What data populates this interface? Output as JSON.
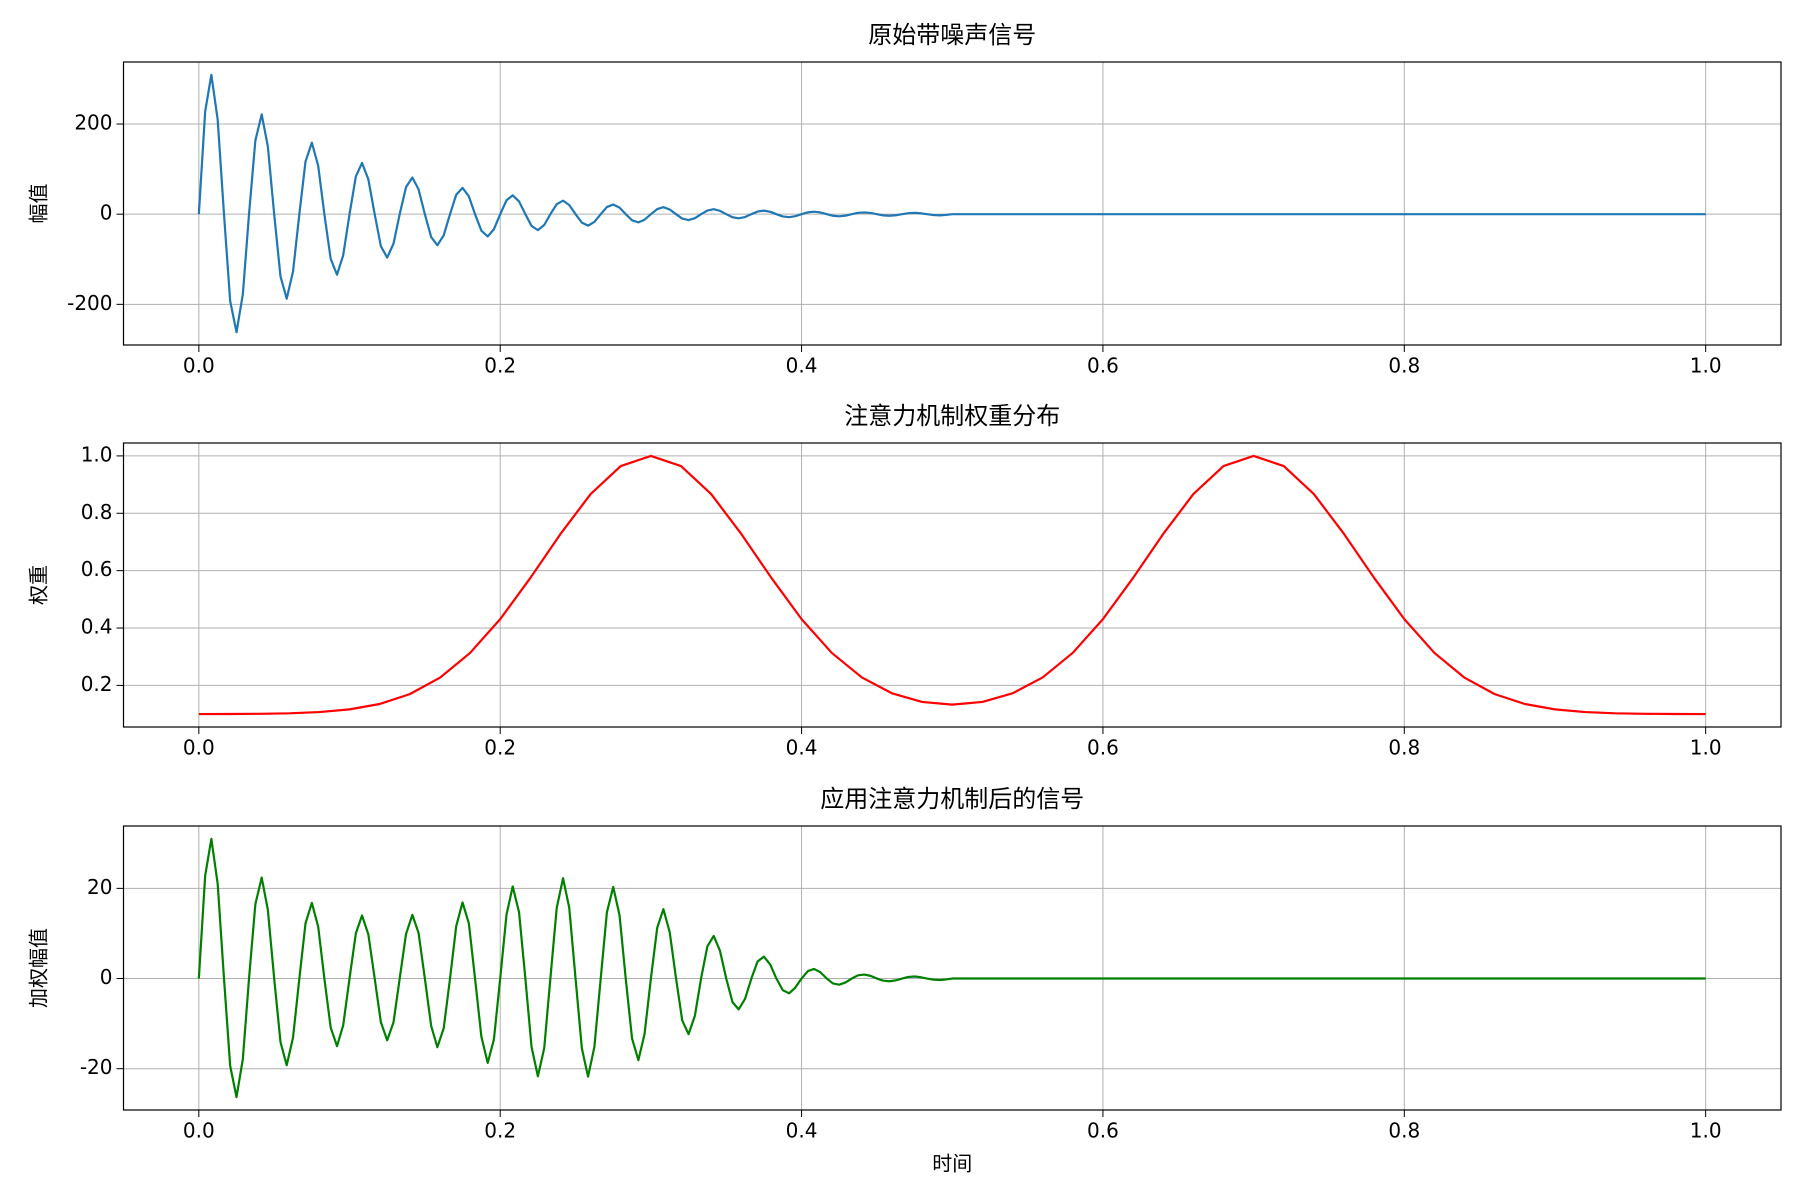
{
  "chart_data": [
    {
      "type": "line",
      "title": "原始带噪声信号",
      "ylabel": "幅值",
      "color": "#1f77b4",
      "grid": true,
      "xlim": [
        -0.05,
        1.05
      ],
      "xticks": [
        {
          "value": 0,
          "label": "0.0"
        },
        0.2,
        0.4,
        0.6,
        0.8,
        {
          "value": 1,
          "label": "1.0"
        }
      ],
      "ylim": [
        -290.2,
        337.6
      ],
      "yticks": [
        -200,
        0,
        200
      ],
      "x": [
        0,
        0.0042,
        0.0083,
        0.0125,
        0.0167,
        0.0208,
        0.025,
        0.0292,
        0.0333,
        0.0375,
        0.0417,
        0.0458,
        0.05,
        0.0542,
        0.0583,
        0.0625,
        0.0667,
        0.0708,
        0.075,
        0.0792,
        0.0833,
        0.0875,
        0.0917,
        0.0958,
        0.1,
        0.1042,
        0.1083,
        0.1125,
        0.1167,
        0.1208,
        0.125,
        0.1292,
        0.1333,
        0.1375,
        0.1417,
        0.1458,
        0.15,
        0.1542,
        0.1583,
        0.1625,
        0.1667,
        0.1708,
        0.175,
        0.1792,
        0.1833,
        0.1875,
        0.1917,
        0.1958,
        0.2,
        0.2042,
        0.2083,
        0.2125,
        0.2167,
        0.2208,
        0.225,
        0.2292,
        0.2333,
        0.2375,
        0.2417,
        0.2458,
        0.25,
        0.2542,
        0.2583,
        0.2625,
        0.2667,
        0.2708,
        0.275,
        0.2792,
        0.2833,
        0.2875,
        0.2917,
        0.2958,
        0.3,
        0.3042,
        0.3083,
        0.3125,
        0.3167,
        0.3208,
        0.325,
        0.3292,
        0.3333,
        0.3375,
        0.3417,
        0.3458,
        0.35,
        0.3542,
        0.3583,
        0.3625,
        0.3667,
        0.3708,
        0.375,
        0.3792,
        0.3833,
        0.3875,
        0.3917,
        0.3958,
        0.4,
        0.4042,
        0.4083,
        0.4125,
        0.4167,
        0.4208,
        0.425,
        0.4292,
        0.4333,
        0.4375,
        0.4417,
        0.4458,
        0.45,
        0.4542,
        0.4583,
        0.4625,
        0.4667,
        0.4708,
        0.475,
        0.4792,
        0.4833,
        0.4875,
        0.4917,
        0.4958,
        0.5,
        0.55,
        0.6,
        0.65,
        0.7,
        0.75,
        0.8,
        0.85,
        0.9,
        0.95,
        1.0
      ],
      "values": [
        0,
        227.9,
        309.1,
        209.7,
        0,
        -192.9,
        -261.7,
        -177.5,
        0,
        163.3,
        221.5,
        150.3,
        0,
        -138.2,
        -187.5,
        -127.2,
        0,
        117.0,
        158.7,
        107.6,
        0,
        -99.0,
        -134.3,
        -91.2,
        0,
        83.8,
        113.7,
        77.2,
        0,
        -71.0,
        -96.3,
        -65.3,
        0,
        60.0,
        81.4,
        55.3,
        0,
        -50.8,
        -68.9,
        -46.8,
        0,
        43.1,
        58.4,
        39.6,
        0,
        -36.5,
        -49.4,
        -33.5,
        0,
        30.9,
        41.8,
        28.3,
        0,
        -26.1,
        -35.4,
        -24.0,
        0,
        22.1,
        30.0,
        20.4,
        0,
        -18.7,
        -25.4,
        -17.2,
        0,
        15.8,
        21.5,
        14.6,
        0,
        -13.5,
        -18.2,
        -12.3,
        0,
        11.3,
        15.5,
        10.4,
        0,
        -9.7,
        -13.1,
        -8.9,
        0,
        8.1,
        11.0,
        7.5,
        0,
        -6.8,
        -9.2,
        -6.3,
        0,
        5.8,
        7.9,
        5.3,
        0,
        -5.0,
        -6.7,
        -4.5,
        0,
        4.1,
        5.6,
        3.9,
        0,
        -3.5,
        -4.7,
        -3.2,
        0,
        3.0,
        3.9,
        2.8,
        0,
        -2.6,
        -3.4,
        -2.4,
        0,
        2.2,
        3.0,
        2.0,
        0,
        -1.8,
        -2.6,
        -1.6,
        0,
        0,
        0,
        0,
        0,
        0,
        0,
        0,
        0,
        0,
        0
      ]
    },
    {
      "type": "line",
      "title": "注意力机制权重分布",
      "ylabel": "权重",
      "color": "#ff0000",
      "grid": true,
      "xlim": [
        -0.05,
        1.05
      ],
      "xticks": [
        {
          "value": 0,
          "label": "0.0"
        },
        0.2,
        0.4,
        0.6,
        0.8,
        {
          "value": 1,
          "label": "1.0"
        }
      ],
      "ylim": [
        0.055,
        1.045
      ],
      "yticks": [
        0.2,
        0.4,
        0.6,
        0.8,
        {
          "value": 1,
          "label": "1.0"
        }
      ],
      "x": [
        0,
        0.02,
        0.04,
        0.06,
        0.08,
        0.1,
        0.12,
        0.14,
        0.16,
        0.18,
        0.2,
        0.22,
        0.24,
        0.26,
        0.28,
        0.3,
        0.32,
        0.34,
        0.36,
        0.38,
        0.4,
        0.42,
        0.44,
        0.46,
        0.48,
        0.5,
        0.52,
        0.54,
        0.56,
        0.58,
        0.6,
        0.62,
        0.64,
        0.66,
        0.68,
        0.7,
        0.72,
        0.74,
        0.76,
        0.78,
        0.8,
        0.82,
        0.84,
        0.86,
        0.88,
        0.9,
        0.92,
        0.94,
        0.96,
        0.98,
        1.0
      ],
      "values": [
        0.1001,
        0.1004,
        0.101,
        0.1028,
        0.1071,
        0.1165,
        0.1352,
        0.1696,
        0.2268,
        0.3132,
        0.4311,
        0.5746,
        0.7279,
        0.8669,
        0.9647,
        1.0,
        0.9647,
        0.8669,
        0.7279,
        0.5746,
        0.4311,
        0.3136,
        0.2278,
        0.1724,
        0.1423,
        0.133,
        0.1423,
        0.1724,
        0.2278,
        0.3136,
        0.4311,
        0.5746,
        0.7279,
        0.8669,
        0.9647,
        1.0,
        0.9647,
        0.8669,
        0.7279,
        0.5746,
        0.4311,
        0.3132,
        0.2268,
        0.1696,
        0.1352,
        0.1165,
        0.1071,
        0.1028,
        0.101,
        0.1004,
        0.1001
      ]
    },
    {
      "type": "line",
      "title": "应用注意力机制后的信号",
      "ylabel": "加权幅值",
      "xlabel": "时间",
      "color": "#008000",
      "grid": true,
      "xlim": [
        -0.05,
        1.05
      ],
      "xticks": [
        {
          "value": 0,
          "label": "0.0"
        },
        0.2,
        0.4,
        0.6,
        0.8,
        {
          "value": 1,
          "label": "1.0"
        }
      ],
      "ylim": [
        -29.16,
        33.83
      ],
      "yticks": [
        -20,
        0,
        20
      ],
      "x": [
        0,
        0.0042,
        0.0083,
        0.0125,
        0.0167,
        0.0208,
        0.025,
        0.0292,
        0.0333,
        0.0375,
        0.0417,
        0.0458,
        0.05,
        0.0542,
        0.0583,
        0.0625,
        0.0667,
        0.0708,
        0.075,
        0.0792,
        0.0833,
        0.0875,
        0.0917,
        0.0958,
        0.1,
        0.1042,
        0.1083,
        0.1125,
        0.1167,
        0.1208,
        0.125,
        0.1292,
        0.1333,
        0.1375,
        0.1417,
        0.1458,
        0.15,
        0.1542,
        0.1583,
        0.1625,
        0.1667,
        0.1708,
        0.175,
        0.1792,
        0.1833,
        0.1875,
        0.1917,
        0.1958,
        0.2,
        0.2042,
        0.2083,
        0.2125,
        0.2167,
        0.2208,
        0.225,
        0.2292,
        0.2333,
        0.2375,
        0.2417,
        0.2458,
        0.25,
        0.2542,
        0.2583,
        0.2625,
        0.2667,
        0.2708,
        0.275,
        0.2792,
        0.2833,
        0.2875,
        0.2917,
        0.2958,
        0.3,
        0.3042,
        0.3083,
        0.3125,
        0.3167,
        0.3208,
        0.325,
        0.3292,
        0.3333,
        0.3375,
        0.3417,
        0.3458,
        0.35,
        0.3542,
        0.3583,
        0.3625,
        0.3667,
        0.3708,
        0.375,
        0.3792,
        0.3833,
        0.3875,
        0.3917,
        0.3958,
        0.4,
        0.4042,
        0.4083,
        0.4125,
        0.4167,
        0.4208,
        0.425,
        0.4292,
        0.4333,
        0.4375,
        0.4417,
        0.4458,
        0.45,
        0.4542,
        0.4583,
        0.4625,
        0.4667,
        0.4708,
        0.475,
        0.4792,
        0.4833,
        0.4875,
        0.4917,
        0.4958,
        0.5,
        0.55,
        0.6,
        0.65,
        0.7,
        0.75,
        0.8,
        0.85,
        0.9,
        0.95,
        1.0
      ],
      "values": [
        0,
        22.81,
        30.97,
        21.0,
        0,
        -19.37,
        -26.3,
        -17.85,
        0,
        16.47,
        22.39,
        15.24,
        0,
        -14.11,
        -19.23,
        -13.12,
        0,
        12.26,
        16.77,
        11.5,
        0,
        -10.88,
        -15.0,
        -10.38,
        0,
        10.01,
        13.97,
        9.77,
        0,
        -9.68,
        -13.68,
        -9.69,
        0,
        9.86,
        14.12,
        10.14,
        0,
        -10.53,
        -15.23,
        -11.03,
        0,
        11.62,
        16.87,
        12.23,
        0,
        -12.89,
        -18.71,
        -13.55,
        0,
        14.2,
        20.42,
        14.7,
        0,
        -15.18,
        -21.68,
        -15.47,
        0,
        15.65,
        22.24,
        15.73,
        0,
        -15.5,
        -21.77,
        -15.17,
        0,
        14.69,
        20.3,
        14.04,
        0,
        -13.29,
        -18.11,
        -12.3,
        0,
        11.27,
        15.38,
        10.26,
        0,
        -9.3,
        -12.34,
        -8.25,
        0,
        7.15,
        9.45,
        6.21,
        0,
        -5.26,
        -6.84,
        -4.5,
        0,
        3.77,
        4.86,
        3.09,
        0,
        -2.58,
        -3.28,
        -2.03,
        0,
        1.66,
        2.13,
        1.4,
        0,
        -1.09,
        -1.37,
        -0.86,
        0,
        0.71,
        0.88,
        0.59,
        0,
        -0.48,
        -0.6,
        -0.41,
        0,
        0.34,
        0.45,
        0.28,
        0,
        -0.25,
        -0.33,
        -0.21,
        0,
        0,
        0,
        0,
        0,
        0,
        0,
        0,
        0,
        0,
        0
      ]
    }
  ]
}
